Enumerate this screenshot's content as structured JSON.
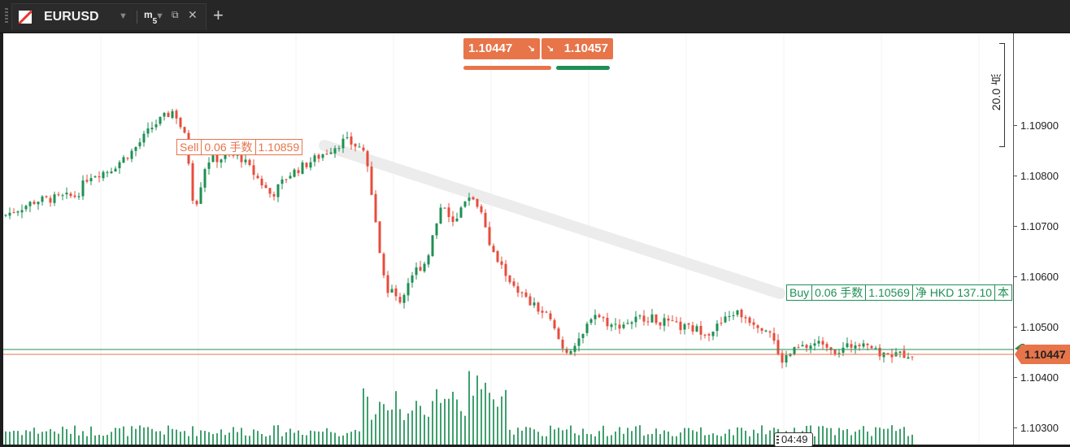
{
  "tab": {
    "symbol": "EURUSD",
    "timeframe_letter": "m",
    "timeframe_value": "5",
    "detach_glyph": "⧉",
    "close_glyph": "✕",
    "new_tab_glyph": "+"
  },
  "quote": {
    "sell_price": "1.10447",
    "buy_price": "1.10457",
    "sell_color": "#e8744a",
    "buy_color": "#1f8f55"
  },
  "orders": {
    "sell": {
      "side": "Sell",
      "volume": "0.06 手数",
      "price": "1.10859"
    },
    "buy": {
      "side": "Buy",
      "volume": "0.06 手数",
      "price": "1.10569",
      "pnl": "净 HKD 137.10",
      "extra": "本"
    }
  },
  "price_axis": {
    "ticks": [
      "1.10900",
      "1.10800",
      "1.10700",
      "1.10600",
      "1.10500",
      "1.10400",
      "1.10300"
    ],
    "current_price": "1.10447"
  },
  "ruler": {
    "label": "20.0 点"
  },
  "countdown": {
    "value": "04:49"
  },
  "colors": {
    "bull": "#1f8f55",
    "bear": "#e74c3c"
  }
}
